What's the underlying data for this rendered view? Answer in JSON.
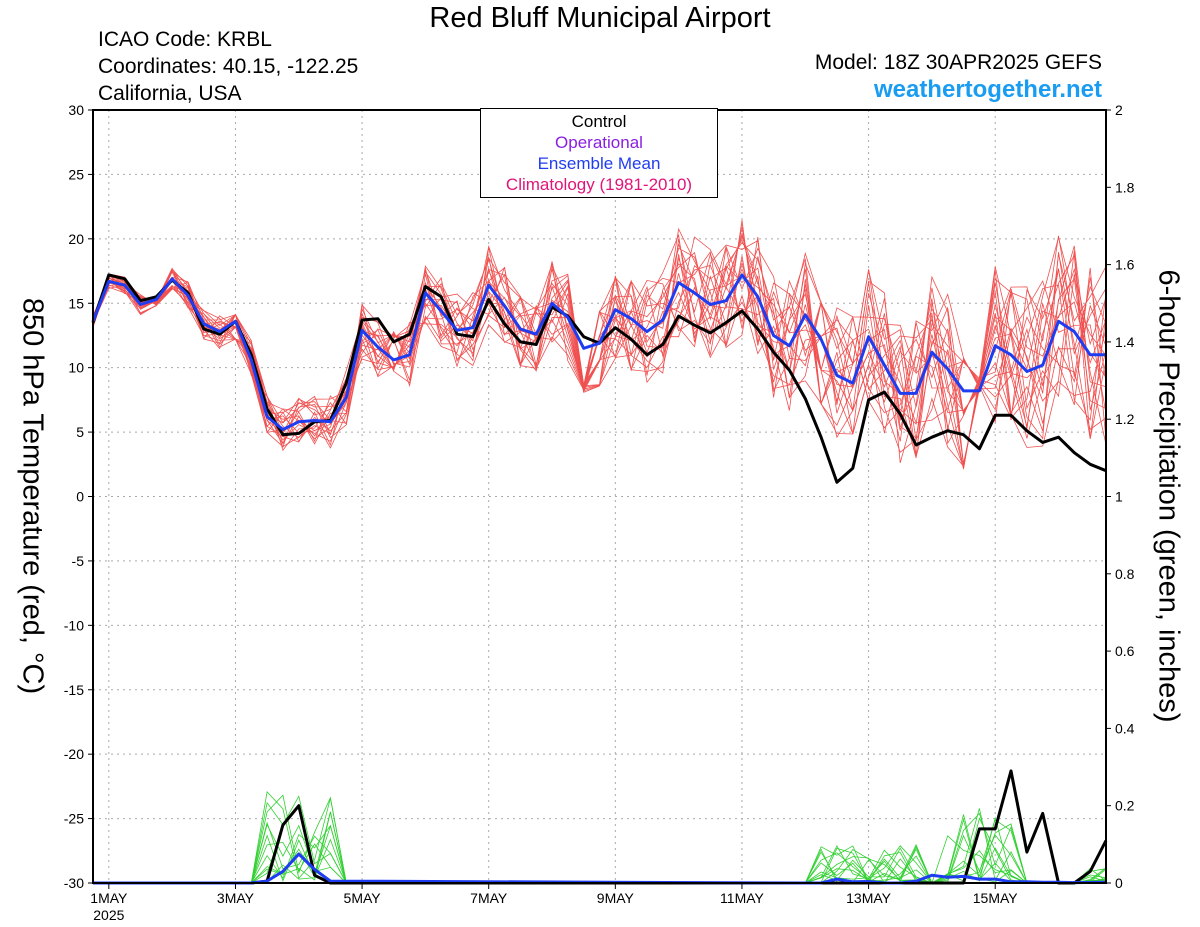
{
  "header": {
    "title": "Red Bluff Municipal Airport",
    "icao": "ICAO Code: KRBL",
    "coordinates": "Coordinates: 40.15, -122.25",
    "region": "California, USA",
    "model": "Model: 18Z 30APR2025 GEFS",
    "site": "weathertogether.net"
  },
  "colors": {
    "control": "#000000",
    "operational": "#8a1ee0",
    "ensemble_mean": "#1f3df0",
    "climatology": "#e0147a",
    "members_temp": "#f05050",
    "members_precip": "#30d030"
  },
  "chart_data": {
    "type": "line",
    "ylabel": "850 hPa Temperature (red, °C)",
    "y2label": "6-hour Precipitation (green, inches)",
    "ylim": [
      -30,
      30
    ],
    "y2lim": [
      0,
      2
    ],
    "yticks": [
      30,
      25,
      20,
      15,
      10,
      5,
      0,
      -5,
      -10,
      -15,
      -20,
      -25,
      -30
    ],
    "y2ticks": [
      2,
      1.8,
      1.6,
      1.4,
      1.2,
      1,
      0.8,
      0.6,
      0.4,
      0.2,
      0
    ],
    "xlim": [
      -0.25,
      15.75
    ],
    "x_unit": "days since 1MAY 2025 00Z",
    "xticks": [
      {
        "x": 0,
        "label": "1MAY",
        "sub": "2025"
      },
      {
        "x": 2,
        "label": "3MAY"
      },
      {
        "x": 4,
        "label": "5MAY"
      },
      {
        "x": 6,
        "label": "7MAY"
      },
      {
        "x": 8,
        "label": "9MAY"
      },
      {
        "x": 10,
        "label": "11MAY"
      },
      {
        "x": 12,
        "label": "13MAY"
      },
      {
        "x": 14,
        "label": "15MAY"
      }
    ],
    "grid": true,
    "legend": {
      "placement": "top-center",
      "entries": [
        "Control",
        "Operational",
        "Ensemble Mean",
        "Climatology (1981-2010)"
      ]
    },
    "series": [
      {
        "name": "Control",
        "kind": "temperature",
        "x": [
          -0.25,
          0,
          0.25,
          0.5,
          0.75,
          1,
          1.25,
          1.5,
          1.75,
          2,
          2.25,
          2.5,
          2.75,
          3,
          3.25,
          3.5,
          3.75,
          4,
          4.25,
          4.5,
          4.75,
          5,
          5.25,
          5.5,
          5.75,
          6,
          6.25,
          6.5,
          6.75,
          7,
          7.25,
          7.5,
          7.75,
          8,
          8.25,
          8.5,
          8.75,
          9,
          9.25,
          9.5,
          9.75,
          10,
          10.25,
          10.5,
          10.75,
          11,
          11.25,
          11.5,
          11.75,
          12,
          12.25,
          12.5,
          12.75,
          13,
          13.25,
          13.5,
          13.75,
          14,
          14.25,
          14.5,
          14.75,
          15,
          15.25,
          15.5,
          15.75
        ],
        "values": [
          13.5,
          17.2,
          16.9,
          15.2,
          15.5,
          16.8,
          15.8,
          13,
          12.6,
          13.6,
          11,
          6.8,
          4.8,
          4.9,
          5.8,
          5.9,
          8.8,
          13.7,
          13.8,
          12,
          12.6,
          16.3,
          15.5,
          12.6,
          12.4,
          15.3,
          13.4,
          12,
          11.8,
          14.7,
          14,
          12.4,
          11.9,
          13.1,
          12.2,
          11,
          11.8,
          14,
          13.3,
          12.7,
          13.5,
          14.4,
          13,
          11.2,
          9.8,
          7.6,
          4.6,
          1.1,
          2.2,
          7.5,
          8.1,
          6.4,
          4,
          4.6,
          5.1,
          4.8,
          3.7,
          6.3,
          6.3,
          5.1,
          4.2,
          4.6,
          3.4,
          2.5,
          2
        ]
      },
      {
        "name": "Ensemble Mean",
        "kind": "temperature",
        "x": [
          -0.25,
          0,
          0.25,
          0.5,
          0.75,
          1,
          1.25,
          1.5,
          1.75,
          2,
          2.25,
          2.5,
          2.75,
          3,
          3.25,
          3.5,
          3.75,
          4,
          4.25,
          4.5,
          4.75,
          5,
          5.25,
          5.5,
          5.75,
          6,
          6.25,
          6.5,
          6.75,
          7,
          7.25,
          7.5,
          7.75,
          8,
          8.25,
          8.5,
          8.75,
          9,
          9.25,
          9.5,
          9.75,
          10,
          10.25,
          10.5,
          10.75,
          11,
          11.25,
          11.5,
          11.75,
          12,
          12.25,
          12.5,
          12.75,
          13,
          13.25,
          13.5,
          13.75,
          14,
          14.25,
          14.5,
          14.75,
          15,
          15.25,
          15.5,
          15.75
        ],
        "values": [
          13.6,
          16.7,
          16.4,
          14.9,
          15.3,
          16.9,
          15.6,
          13.4,
          12.8,
          13.6,
          10.6,
          6.2,
          5.2,
          5.8,
          5.9,
          5.8,
          7.7,
          12.9,
          11.6,
          10.6,
          11,
          15.8,
          14.4,
          12.9,
          13.1,
          16.4,
          14.8,
          13,
          12.6,
          15,
          13.9,
          11.5,
          11.9,
          14.5,
          13.8,
          12.8,
          13.7,
          16.6,
          15.8,
          14.9,
          15.2,
          17.2,
          15.5,
          12.5,
          11.7,
          14.1,
          12.2,
          9.4,
          8.8,
          12.4,
          10.2,
          8,
          8,
          11.2,
          9.9,
          8.2,
          8.2,
          11.7,
          11,
          9.7,
          10.2,
          13.6,
          12.8,
          11,
          11
        ]
      },
      {
        "name": "Control",
        "kind": "precipitation",
        "x": [
          -0.25,
          2.25,
          2.5,
          2.75,
          3,
          3.25,
          3.5,
          13.5,
          13.75,
          14,
          14.25,
          14.5,
          14.75,
          15,
          15.25,
          15.5,
          15.75
        ],
        "values": [
          0,
          0,
          0.005,
          0.15,
          0.2,
          0.02,
          0,
          0,
          0.14,
          0.14,
          0.29,
          0.08,
          0.18,
          0,
          0,
          0.03,
          0.11
        ]
      },
      {
        "name": "Ensemble Mean",
        "kind": "precipitation",
        "x": [
          -0.25,
          2.25,
          2.5,
          2.75,
          3,
          3.25,
          3.5,
          11,
          11.25,
          11.5,
          11.75,
          12,
          12.25,
          12.5,
          12.75,
          13,
          13.25,
          13.5,
          13.75,
          14,
          14.25,
          14.5,
          14.75,
          15,
          15.25,
          15.75
        ],
        "values": [
          0,
          0,
          0.005,
          0.03,
          0.075,
          0.035,
          0.005,
          0,
          0,
          0.01,
          0.003,
          0.004,
          0,
          0,
          0.005,
          0.02,
          0.015,
          0.017,
          0.01,
          0.01,
          0.003,
          0.003,
          0.002,
          0.002,
          0.001,
          0.002
        ]
      }
    ]
  }
}
